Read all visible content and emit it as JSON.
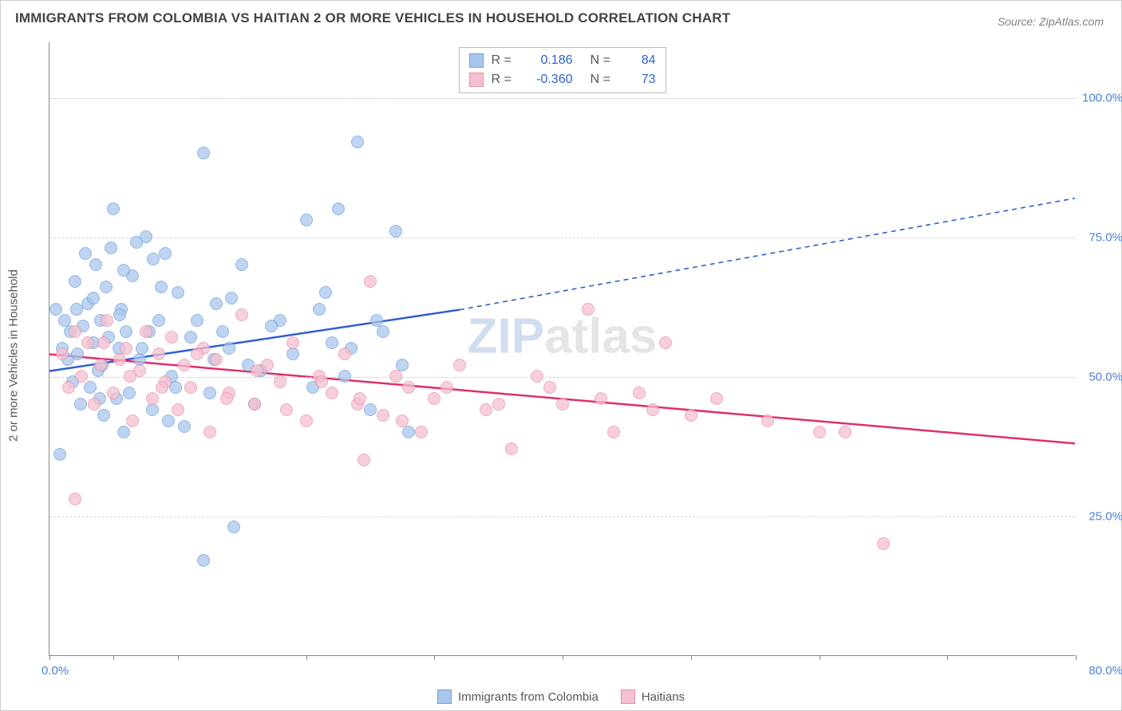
{
  "title": "IMMIGRANTS FROM COLOMBIA VS HAITIAN 2 OR MORE VEHICLES IN HOUSEHOLD CORRELATION CHART",
  "source_label": "Source:",
  "source_value": "ZipAtlas.com",
  "y_axis_title": "2 or more Vehicles in Household",
  "watermark_z": "ZIP",
  "watermark_rest": "atlas",
  "chart": {
    "type": "scatter",
    "xlim": [
      0,
      80
    ],
    "ylim": [
      0,
      110
    ],
    "x_origin_label": "0.0%",
    "x_max_label": "80.0%",
    "x_ticks": [
      0,
      5,
      10,
      20,
      30,
      40,
      50,
      60,
      70,
      80
    ],
    "y_gridlines": [
      {
        "value": 25,
        "label": "25.0%"
      },
      {
        "value": 50,
        "label": "50.0%"
      },
      {
        "value": 75,
        "label": "75.0%"
      },
      {
        "value": 100,
        "label": "100.0%"
      }
    ],
    "background_color": "#ffffff",
    "grid_color": "#d0d0d0",
    "axis_color": "#888888",
    "marker_radius": 8,
    "marker_fill_opacity": 0.35,
    "series": [
      {
        "name": "Immigrants from Colombia",
        "color_fill": "#a9c6ec",
        "color_stroke": "#6f9fdc",
        "line_color": "#2e5fd0",
        "r_value": "0.186",
        "n_value": "84",
        "trend": {
          "x1": 0,
          "y1": 51,
          "x2_solid": 32,
          "y2_solid": 62,
          "x2": 80,
          "y2": 82
        },
        "points": [
          [
            0.5,
            62
          ],
          [
            0.8,
            36
          ],
          [
            1,
            55
          ],
          [
            1.2,
            60
          ],
          [
            1.4,
            53
          ],
          [
            1.6,
            58
          ],
          [
            1.8,
            49
          ],
          [
            2,
            67
          ],
          [
            2.2,
            54
          ],
          [
            2.4,
            45
          ],
          [
            2.6,
            59
          ],
          [
            2.8,
            72
          ],
          [
            3,
            63
          ],
          [
            3.2,
            48
          ],
          [
            3.4,
            56
          ],
          [
            3.6,
            70
          ],
          [
            3.8,
            51
          ],
          [
            4,
            60
          ],
          [
            4.2,
            43
          ],
          [
            4.4,
            66
          ],
          [
            4.6,
            57
          ],
          [
            4.8,
            73
          ],
          [
            5,
            80
          ],
          [
            5.2,
            46
          ],
          [
            5.4,
            55
          ],
          [
            5.6,
            62
          ],
          [
            5.8,
            40
          ],
          [
            6,
            58
          ],
          [
            6.5,
            68
          ],
          [
            7,
            53
          ],
          [
            7.5,
            75
          ],
          [
            8,
            44
          ],
          [
            8.5,
            60
          ],
          [
            9,
            72
          ],
          [
            9.5,
            50
          ],
          [
            10,
            65
          ],
          [
            10.5,
            41
          ],
          [
            11,
            57
          ],
          [
            12,
            90
          ],
          [
            12.5,
            47
          ],
          [
            13,
            63
          ],
          [
            14,
            55
          ],
          [
            14.4,
            23
          ],
          [
            15,
            70
          ],
          [
            15.5,
            52
          ],
          [
            16,
            45
          ],
          [
            12,
            17
          ],
          [
            18,
            60
          ],
          [
            19,
            54
          ],
          [
            20,
            78
          ],
          [
            20.5,
            48
          ],
          [
            21,
            62
          ],
          [
            22,
            56
          ],
          [
            22.5,
            80
          ],
          [
            23,
            50
          ],
          [
            24,
            92
          ],
          [
            25,
            44
          ],
          [
            26,
            58
          ],
          [
            27,
            76
          ],
          [
            28,
            40
          ],
          [
            3.4,
            64
          ],
          [
            4.1,
            52
          ],
          [
            5.5,
            61
          ],
          [
            6.2,
            47
          ],
          [
            7.8,
            58
          ],
          [
            8.7,
            66
          ],
          [
            9.3,
            42
          ],
          [
            11.5,
            60
          ],
          [
            12.8,
            53
          ],
          [
            14.2,
            64
          ],
          [
            16.5,
            51
          ],
          [
            17.3,
            59
          ],
          [
            21.5,
            65
          ],
          [
            23.5,
            55
          ],
          [
            25.5,
            60
          ],
          [
            27.5,
            52
          ],
          [
            6.8,
            74
          ],
          [
            8.1,
            71
          ],
          [
            2.1,
            62
          ],
          [
            3.9,
            46
          ],
          [
            5.8,
            69
          ],
          [
            7.2,
            55
          ],
          [
            9.8,
            48
          ],
          [
            13.5,
            58
          ]
        ]
      },
      {
        "name": "Haitians",
        "color_fill": "#f5c0cf",
        "color_stroke": "#e88fa8",
        "line_color": "#e02f6a",
        "r_value": "-0.360",
        "n_value": "73",
        "trend": {
          "x1": 0,
          "y1": 54,
          "x2_solid": 80,
          "y2_solid": 38,
          "x2": 80,
          "y2": 38
        },
        "points": [
          [
            1,
            54
          ],
          [
            1.5,
            48
          ],
          [
            2,
            58
          ],
          [
            2.5,
            50
          ],
          [
            3,
            56
          ],
          [
            3.5,
            45
          ],
          [
            4,
            52
          ],
          [
            4.5,
            60
          ],
          [
            5,
            47
          ],
          [
            5.5,
            53
          ],
          [
            6,
            55
          ],
          [
            6.5,
            42
          ],
          [
            7,
            51
          ],
          [
            7.5,
            58
          ],
          [
            8,
            46
          ],
          [
            8.5,
            54
          ],
          [
            9,
            49
          ],
          [
            9.5,
            57
          ],
          [
            10,
            44
          ],
          [
            10.5,
            52
          ],
          [
            11,
            48
          ],
          [
            12,
            55
          ],
          [
            12.5,
            40
          ],
          [
            13,
            53
          ],
          [
            14,
            47
          ],
          [
            15,
            61
          ],
          [
            16,
            45
          ],
          [
            17,
            52
          ],
          [
            18,
            49
          ],
          [
            19,
            56
          ],
          [
            20,
            42
          ],
          [
            21,
            50
          ],
          [
            22,
            47
          ],
          [
            23,
            54
          ],
          [
            24,
            45
          ],
          [
            25,
            67
          ],
          [
            26,
            43
          ],
          [
            27,
            50
          ],
          [
            28,
            48
          ],
          [
            29,
            40
          ],
          [
            30,
            46
          ],
          [
            32,
            52
          ],
          [
            34,
            44
          ],
          [
            36,
            37
          ],
          [
            38,
            50
          ],
          [
            40,
            45
          ],
          [
            42,
            62
          ],
          [
            44,
            40
          ],
          [
            46,
            47
          ],
          [
            48,
            56
          ],
          [
            50,
            43
          ],
          [
            24.5,
            35
          ],
          [
            2,
            28
          ],
          [
            62,
            40
          ],
          [
            65,
            20
          ],
          [
            4.2,
            56
          ],
          [
            6.3,
            50
          ],
          [
            8.8,
            48
          ],
          [
            11.5,
            54
          ],
          [
            13.8,
            46
          ],
          [
            16.2,
            51
          ],
          [
            18.5,
            44
          ],
          [
            21.2,
            49
          ],
          [
            24.2,
            46
          ],
          [
            27.5,
            42
          ],
          [
            31,
            48
          ],
          [
            35,
            45
          ],
          [
            39,
            48
          ],
          [
            43,
            46
          ],
          [
            47,
            44
          ],
          [
            52,
            46
          ],
          [
            56,
            42
          ],
          [
            60,
            40
          ]
        ]
      }
    ]
  },
  "colors": {
    "title": "#444444",
    "source": "#808080",
    "tick_label": "#4a7fd8",
    "value_blue": "#2e5fd0",
    "value_pink": "#e02f6a"
  }
}
